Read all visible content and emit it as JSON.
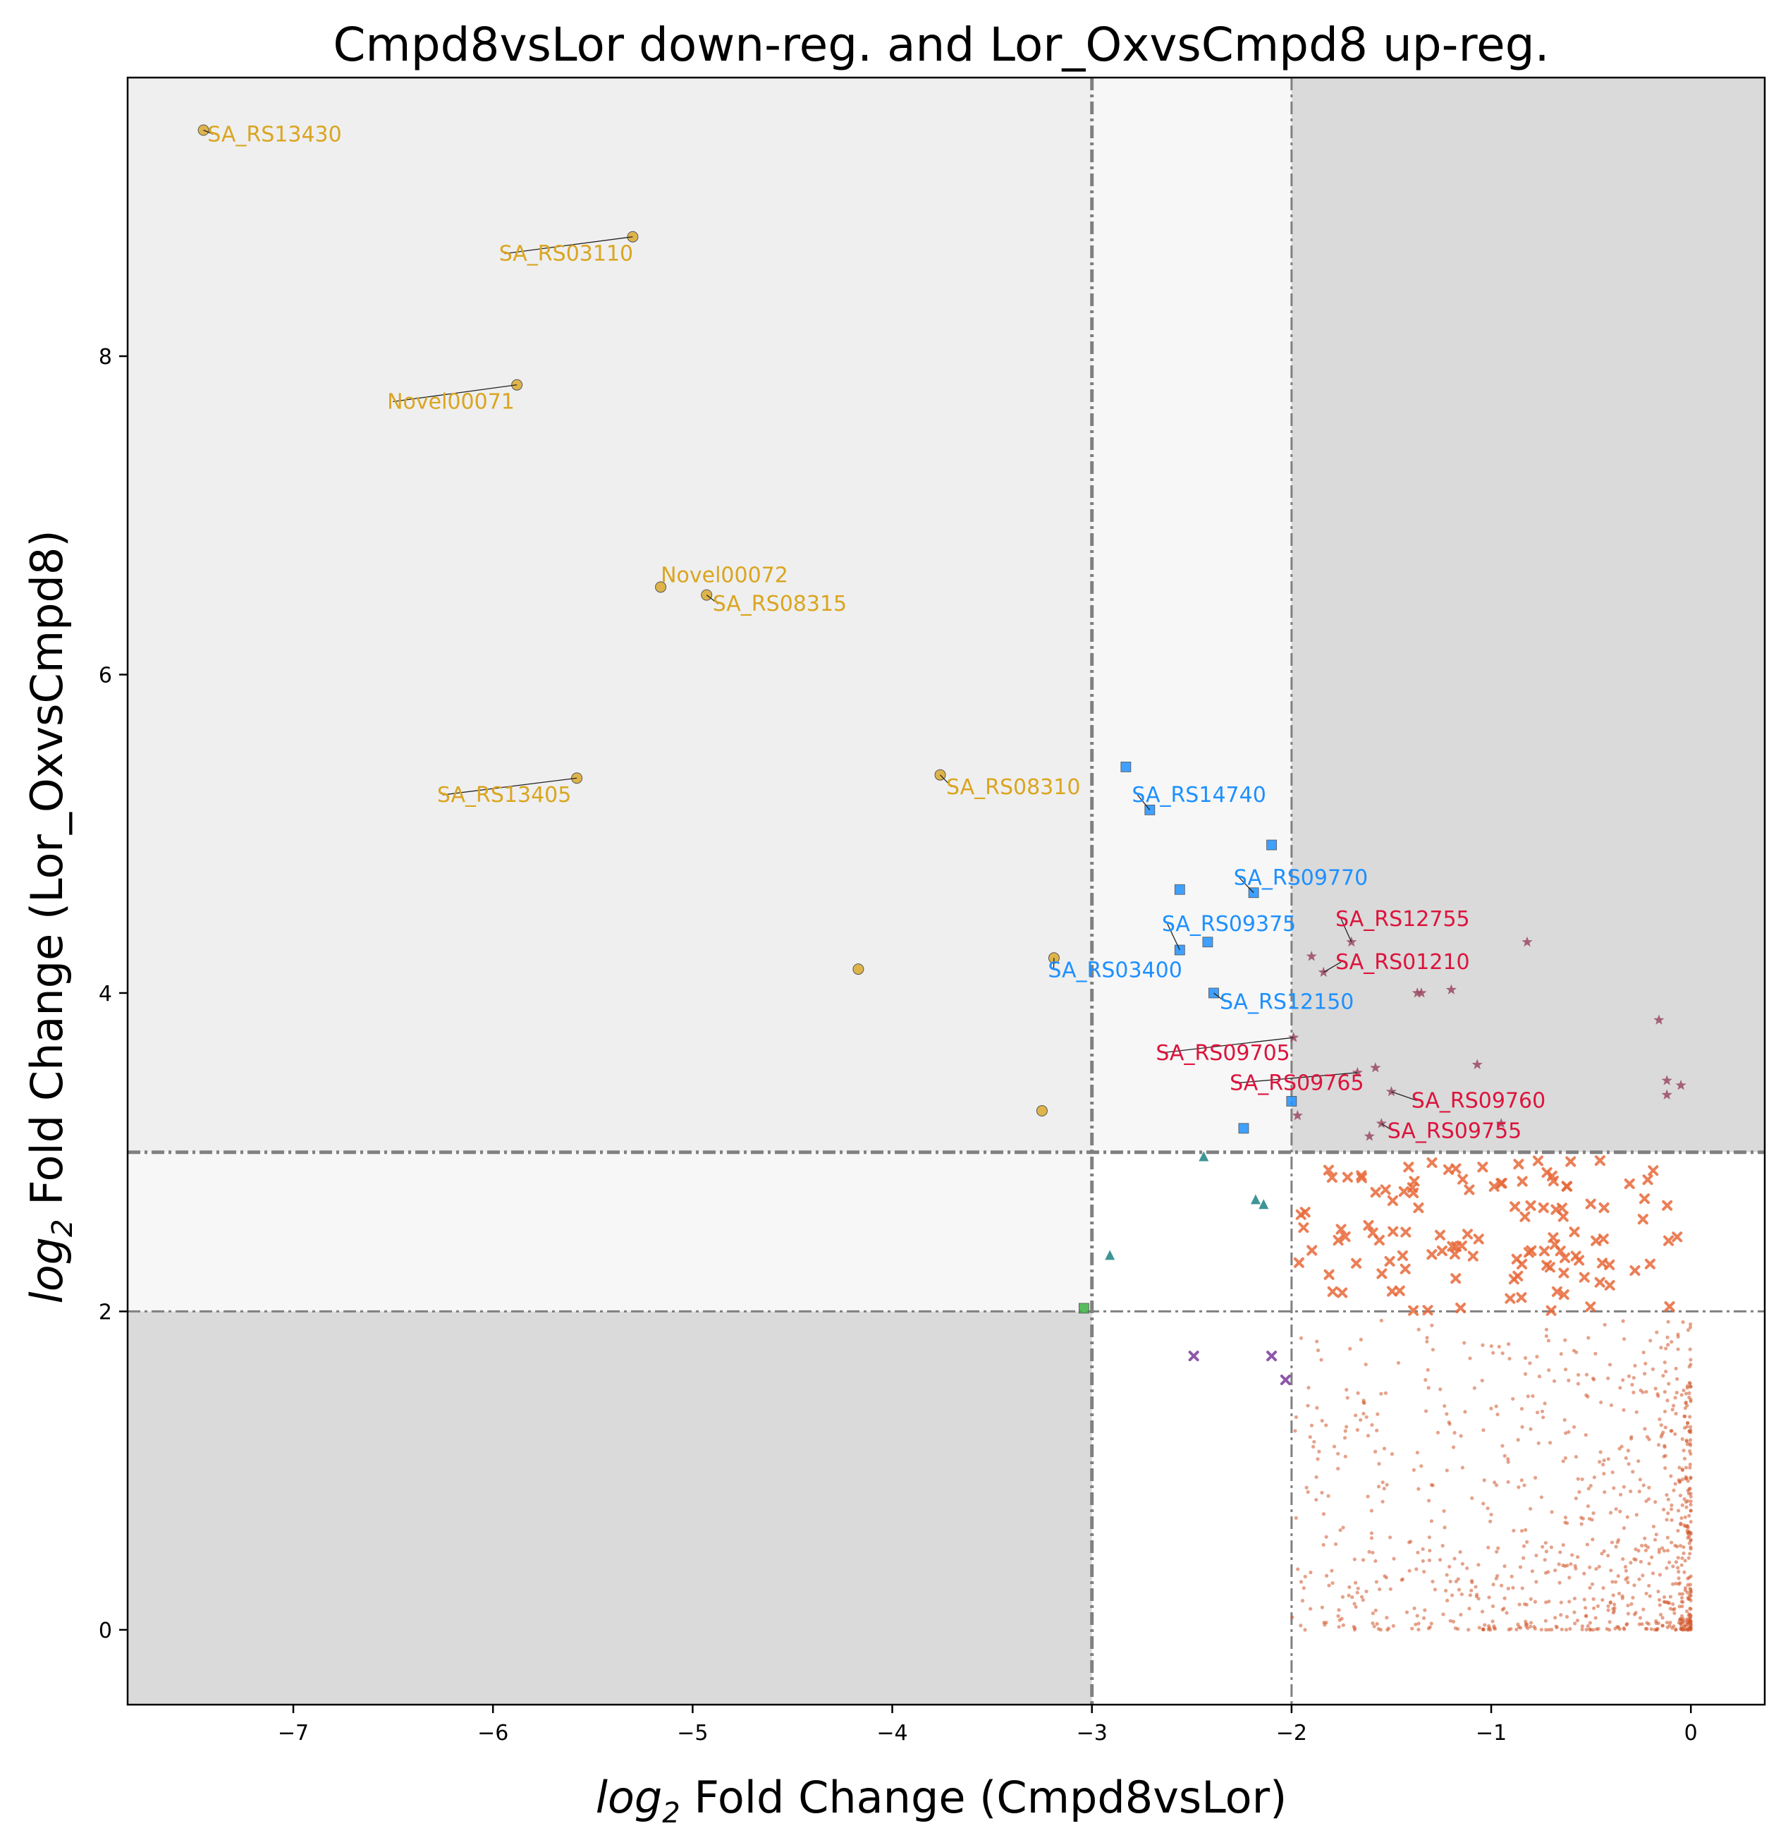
{
  "chart_data": {
    "type": "scatter",
    "title": "Cmpd8vsLor down-reg. and Lor_OxvsCmpd8 up-reg.",
    "xlabel": "log2 Fold Change (Cmpd8vsLor)",
    "ylabel": "log2 Fold Change (Lor_OxvsCmpd8)",
    "xlabel_parts": {
      "log": "log",
      "sub": "2",
      "rest": " Fold Change (Cmpd8vsLor)"
    },
    "ylabel_parts": {
      "log": "log",
      "sub": "2",
      "rest": " Fold Change (Lor_OxvsCmpd8)"
    },
    "xlim": [
      -7.83,
      0.37
    ],
    "ylim": [
      -0.47,
      9.75
    ],
    "x_ticks": [
      -7,
      -6,
      -5,
      -4,
      -3,
      -2,
      -1,
      0
    ],
    "y_ticks": [
      0,
      2,
      4,
      6,
      8
    ],
    "x_tick_labels": [
      "−7",
      "−6",
      "−5",
      "−4",
      "−3",
      "−2",
      "−1",
      "0"
    ],
    "y_tick_labels": [
      "0",
      "2",
      "4",
      "6",
      "8"
    ],
    "thresholds": {
      "x": [
        -3,
        -2
      ],
      "y": [
        2,
        3
      ]
    },
    "grid": false,
    "colors": {
      "gold": "#daa520",
      "blue": "#1e90ff",
      "crimson": "#dc143c",
      "star": "#9a4a62",
      "teal": "#2a8a8a",
      "green": "#3cb043",
      "purple": "#7a3a9a",
      "orange_x": "#e8683a",
      "orange_dot": "#d2552a",
      "shade_dark": "#dadada",
      "shade_mid": "#efefef",
      "shade_light": "#f7f7f7",
      "threshold_line": "#808080"
    },
    "series": [
      {
        "group": "gold",
        "marker": "circle",
        "points": [
          [
            -7.45,
            9.42
          ],
          [
            -5.3,
            8.75
          ],
          [
            -5.88,
            7.82
          ],
          [
            -5.16,
            6.55
          ],
          [
            -4.93,
            6.5
          ],
          [
            -5.58,
            5.35
          ],
          [
            -3.76,
            5.37
          ],
          [
            -4.17,
            4.15
          ],
          [
            -3.19,
            4.22
          ],
          [
            -3.25,
            3.26
          ]
        ]
      },
      {
        "group": "blue",
        "marker": "square",
        "points": [
          [
            -2.83,
            5.42
          ],
          [
            -2.71,
            5.15
          ],
          [
            -2.1,
            4.93
          ],
          [
            -2.56,
            4.65
          ],
          [
            -2.19,
            4.63
          ],
          [
            -2.42,
            4.32
          ],
          [
            -2.56,
            4.27
          ],
          [
            -2.39,
            4.0
          ],
          [
            -2.0,
            3.32
          ],
          [
            -2.24,
            3.15
          ]
        ]
      },
      {
        "group": "star",
        "marker": "star",
        "points": [
          [
            -1.7,
            4.32
          ],
          [
            -0.82,
            4.32
          ],
          [
            -1.9,
            4.23
          ],
          [
            -1.84,
            4.13
          ],
          [
            -1.37,
            4.0
          ],
          [
            -1.35,
            4.0
          ],
          [
            -1.2,
            4.02
          ],
          [
            -0.16,
            3.83
          ],
          [
            -1.99,
            3.72
          ],
          [
            -1.07,
            3.55
          ],
          [
            -1.58,
            3.53
          ],
          [
            -1.67,
            3.5
          ],
          [
            -0.12,
            3.45
          ],
          [
            -0.05,
            3.42
          ],
          [
            -0.12,
            3.36
          ],
          [
            -1.5,
            3.38
          ],
          [
            -1.97,
            3.23
          ],
          [
            -1.55,
            3.18
          ],
          [
            -1.61,
            3.1
          ],
          [
            -0.95,
            3.18
          ]
        ]
      },
      {
        "group": "teal",
        "marker": "triangle",
        "points": [
          [
            -2.44,
            2.97
          ],
          [
            -2.18,
            2.7
          ],
          [
            -2.14,
            2.67
          ],
          [
            -2.91,
            2.35
          ]
        ]
      },
      {
        "group": "green",
        "marker": "square",
        "points": [
          [
            -3.04,
            2.02
          ]
        ]
      },
      {
        "group": "purple",
        "marker": "x",
        "points": [
          [
            -2.49,
            1.72
          ],
          [
            -2.1,
            1.72
          ],
          [
            -2.03,
            1.57
          ]
        ]
      },
      {
        "group": "orange_x",
        "marker": "x",
        "generated_range": {
          "x": [
            -1.98,
            -0.06
          ],
          "y": [
            2.0,
            2.95
          ]
        },
        "count": 120
      },
      {
        "group": "orange_dot",
        "marker": "dot",
        "generated_range": {
          "x": [
            -2.0,
            0.0
          ],
          "y": [
            0.0,
            1.95
          ]
        },
        "count": 900
      }
    ],
    "annotations": [
      {
        "text": "SA_RS13430",
        "x": -7.45,
        "y": 9.42,
        "tx": -7.43,
        "ty": 9.35,
        "color": "gold"
      },
      {
        "text": "SA_RS03110",
        "x": -5.3,
        "y": 8.75,
        "tx": -5.97,
        "ty": 8.6,
        "color": "gold"
      },
      {
        "text": "Novel00071",
        "x": -5.88,
        "y": 7.82,
        "tx": -6.53,
        "ty": 7.67,
        "color": "gold"
      },
      {
        "text": "Novel00072",
        "x": -5.16,
        "y": 6.55,
        "tx": -5.16,
        "ty": 6.58,
        "color": "gold"
      },
      {
        "text": "SA_RS08315",
        "x": -4.93,
        "y": 6.5,
        "tx": -4.9,
        "ty": 6.4,
        "color": "gold"
      },
      {
        "text": "SA_RS13405",
        "x": -5.58,
        "y": 5.35,
        "tx": -6.28,
        "ty": 5.2,
        "color": "gold"
      },
      {
        "text": "SA_RS08310",
        "x": -3.76,
        "y": 5.37,
        "tx": -3.73,
        "ty": 5.25,
        "color": "gold"
      },
      {
        "text": "SA_RS14740",
        "x": -2.71,
        "y": 5.15,
        "tx": -2.8,
        "ty": 5.2,
        "color": "blue"
      },
      {
        "text": "SA_RS09770",
        "x": -2.19,
        "y": 4.63,
        "tx": -2.29,
        "ty": 4.68,
        "color": "blue"
      },
      {
        "text": "SA_RS09375",
        "x": -2.56,
        "y": 4.27,
        "tx": -2.65,
        "ty": 4.39,
        "color": "blue"
      },
      {
        "text": "SA_RS03400",
        "x": -3.19,
        "y": 4.22,
        "tx": -3.22,
        "ty": 4.1,
        "color": "blue"
      },
      {
        "text": "SA_RS12150",
        "x": -2.39,
        "y": 4.0,
        "tx": -2.36,
        "ty": 3.9,
        "color": "blue"
      },
      {
        "text": "SA_RS12755",
        "x": -1.7,
        "y": 4.32,
        "tx": -1.78,
        "ty": 4.42,
        "color": "crimson"
      },
      {
        "text": "SA_RS01210",
        "x": -1.84,
        "y": 4.13,
        "tx": -1.78,
        "ty": 4.15,
        "color": "crimson"
      },
      {
        "text": "SA_RS09705",
        "x": -1.99,
        "y": 3.72,
        "tx": -2.68,
        "ty": 3.58,
        "color": "crimson"
      },
      {
        "text": "SA_RS09765",
        "x": -1.67,
        "y": 3.5,
        "tx": -2.31,
        "ty": 3.39,
        "color": "crimson"
      },
      {
        "text": "SA_RS09760",
        "x": -1.5,
        "y": 3.38,
        "tx": -1.4,
        "ty": 3.28,
        "color": "crimson"
      },
      {
        "text": "SA_RS09755",
        "x": -1.55,
        "y": 3.18,
        "tx": -1.52,
        "ty": 3.09,
        "color": "crimson"
      }
    ]
  }
}
